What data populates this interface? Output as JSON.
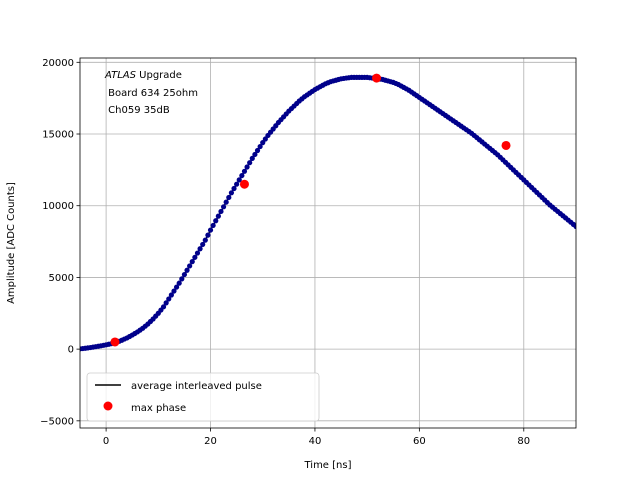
{
  "chart_data": {
    "type": "scatter",
    "xlabel": "Time [ns]",
    "ylabel": "Amplitude [ADC Counts]",
    "xlim": [
      -5,
      90
    ],
    "ylim": [
      -5500,
      20300
    ],
    "x_ticks": [
      0,
      20,
      40,
      60,
      80
    ],
    "y_ticks": [
      -5000,
      0,
      5000,
      10000,
      15000,
      20000
    ],
    "grid": true,
    "annotation": {
      "line1_italic": "ATLAS",
      "line1_rest": " Upgrade",
      "line2": " Board 634 25ohm",
      "line3": " Ch059 35dB"
    },
    "legend": {
      "placement": "lower-left",
      "entries": [
        "average interleaved pulse",
        "max phase"
      ]
    },
    "series": [
      {
        "name": "average interleaved pulse",
        "color": "#000000",
        "marker_color": "#00008b",
        "x": [
          -5,
          -4,
          -3,
          -2,
          -1,
          0,
          1,
          2,
          3,
          4,
          5,
          6,
          7,
          8,
          9,
          10,
          11,
          12,
          13,
          14,
          15,
          16,
          17,
          18,
          19,
          20,
          21,
          22,
          23,
          24,
          25,
          26,
          27,
          28,
          29,
          30,
          31,
          32,
          33,
          34,
          35,
          36,
          37,
          38,
          39,
          40,
          41,
          42,
          43,
          44,
          45,
          46,
          47,
          48,
          49,
          50,
          51,
          52,
          53,
          54,
          55,
          56,
          57,
          58,
          59,
          60,
          61,
          62,
          63,
          64,
          65,
          66,
          67,
          68,
          69,
          70,
          71,
          72,
          73,
          74,
          75,
          76,
          77,
          78,
          79,
          80,
          81,
          82,
          83,
          84,
          85,
          86,
          87,
          88,
          89,
          90
        ],
        "y": [
          20,
          60,
          110,
          170,
          230,
          300,
          380,
          470,
          620,
          780,
          980,
          1200,
          1450,
          1750,
          2100,
          2500,
          2950,
          3500,
          4050,
          4600,
          5200,
          5800,
          6400,
          7000,
          7600,
          8300,
          8950,
          9600,
          10250,
          10900,
          11500,
          12100,
          12700,
          13300,
          13850,
          14400,
          14900,
          15350,
          15800,
          16200,
          16600,
          16950,
          17300,
          17600,
          17850,
          18100,
          18300,
          18500,
          18650,
          18750,
          18850,
          18900,
          18950,
          18950,
          18950,
          18950,
          18900,
          18850,
          18800,
          18700,
          18600,
          18450,
          18250,
          18050,
          17800,
          17550,
          17300,
          17050,
          16800,
          16550,
          16300,
          16050,
          15800,
          15550,
          15300,
          15050,
          14750,
          14450,
          14150,
          13850,
          13550,
          13200,
          12850,
          12500,
          12150,
          11800,
          11450,
          11100,
          10750,
          10400,
          10050,
          9750,
          9450,
          9150,
          8850,
          8550
        ]
      },
      {
        "name": "max phase",
        "color": "#ff0000",
        "x": [
          1.7,
          26.5,
          51.8,
          76.6
        ],
        "y": [
          500,
          11500,
          18900,
          14200
        ]
      }
    ]
  }
}
